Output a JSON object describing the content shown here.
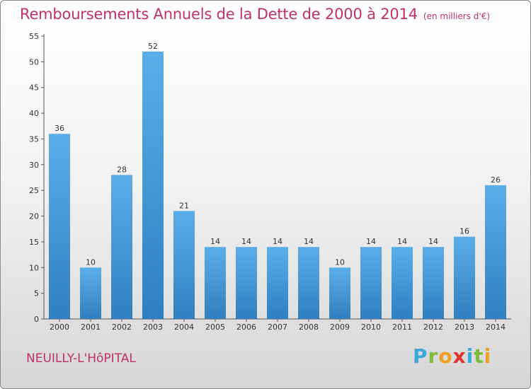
{
  "header": {
    "title": "Remboursements Annuels de la Dette de 2000 à 2014",
    "subtitle": "(en milliers d'€)"
  },
  "footer": {
    "city": "NEUILLY-L'HôPITAL",
    "logo_text": "Proxiti",
    "logo_colors": [
      "#3aa9d9",
      "#7dbb3c",
      "#f0a020",
      "#e0352b",
      "#3aa9d9",
      "#7dbb3c",
      "#f0a020"
    ]
  },
  "chart_data": {
    "type": "bar",
    "title": "Remboursements Annuels de la Dette de 2000 à 2014",
    "subtitle": "(en milliers d'€)",
    "categories": [
      "2000",
      "2001",
      "2002",
      "2003",
      "2004",
      "2005",
      "2006",
      "2007",
      "2008",
      "2009",
      "2010",
      "2011",
      "2012",
      "2013",
      "2014"
    ],
    "values": [
      36,
      10,
      28,
      52,
      21,
      14,
      14,
      14,
      14,
      10,
      14,
      14,
      14,
      16,
      26
    ],
    "ylim": [
      0,
      55
    ],
    "yticks": [
      0,
      5,
      10,
      15,
      20,
      25,
      30,
      35,
      40,
      45,
      50,
      55
    ],
    "grid": false,
    "bar_color_top": "#5aaee8",
    "bar_color_bottom": "#2f7fc2"
  }
}
